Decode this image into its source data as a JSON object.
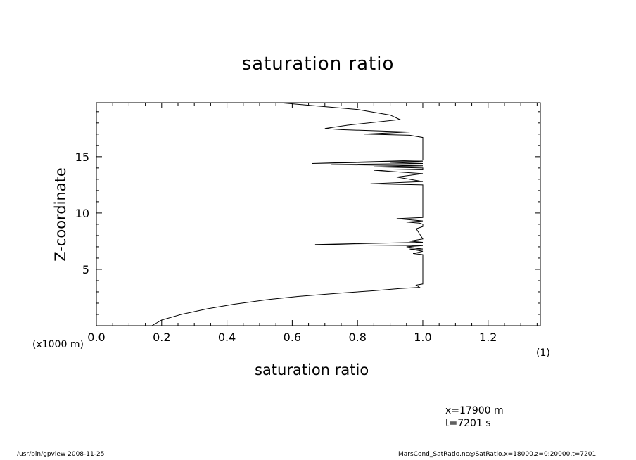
{
  "chart_data": {
    "type": "line",
    "title": "saturation ratio",
    "xlabel": "saturation ratio",
    "ylabel": "Z-coordinate",
    "y_unit": "(x1000 m)",
    "x_unit": "(1)",
    "xlim": [
      0,
      1.36
    ],
    "ylim": [
      0,
      19.8
    ],
    "x_ticks": [
      "0.0",
      "0.2",
      "0.4",
      "0.6",
      "0.8",
      "1.0",
      "1.2"
    ],
    "y_ticks": [
      "5",
      "10",
      "15"
    ],
    "x_tick_values": [
      0,
      0.2,
      0.4,
      0.6,
      0.8,
      1.0,
      1.2
    ],
    "y_tick_values": [
      5,
      10,
      15
    ],
    "series": [
      {
        "x": [
          0.17,
          0.2,
          0.26,
          0.34,
          0.42,
          0.52,
          0.62,
          0.75,
          0.85,
          0.93,
          0.99,
          0.98,
          1.0,
          1.0,
          1.0,
          0.97,
          1.0,
          0.96,
          1.0,
          0.95,
          1.0,
          0.67,
          1.0,
          0.96,
          1.0,
          0.98,
          1.0,
          1.0,
          0.99,
          0.95,
          1.0,
          0.92,
          1.0,
          1.0,
          1.0,
          0.84,
          1.0,
          0.92,
          1.0,
          0.85,
          1.0,
          1.0,
          0.85,
          1.0,
          0.72,
          1.0,
          0.9,
          1.0,
          0.66,
          1.0,
          1.0,
          0.96,
          0.82,
          0.96,
          0.75,
          0.7,
          0.77,
          0.93,
          0.9,
          0.8,
          0.56
        ],
        "y": [
          0.0,
          0.5,
          1.0,
          1.5,
          1.9,
          2.3,
          2.6,
          2.9,
          3.1,
          3.3,
          3.4,
          3.6,
          3.7,
          6.0,
          6.3,
          6.4,
          6.6,
          6.8,
          6.8,
          7.0,
          7.1,
          7.2,
          7.4,
          7.5,
          7.7,
          8.6,
          8.8,
          9.0,
          9.1,
          9.2,
          9.3,
          9.5,
          9.6,
          12.4,
          12.5,
          12.6,
          12.8,
          13.2,
          13.5,
          13.8,
          13.9,
          14.0,
          14.1,
          14.2,
          14.3,
          14.4,
          14.5,
          14.6,
          14.4,
          14.7,
          16.7,
          16.9,
          17.0,
          17.2,
          17.4,
          17.5,
          17.8,
          18.3,
          18.7,
          19.2,
          19.8
        ]
      }
    ]
  },
  "info": {
    "position": "x=17900 m",
    "time": "t=7201 s"
  },
  "footer": {
    "left": "/usr/bin/gpview   2008-11-25",
    "right": "MarsCond_SatRatio.nc@SatRatio,x=18000,z=0:20000,t=7201"
  }
}
